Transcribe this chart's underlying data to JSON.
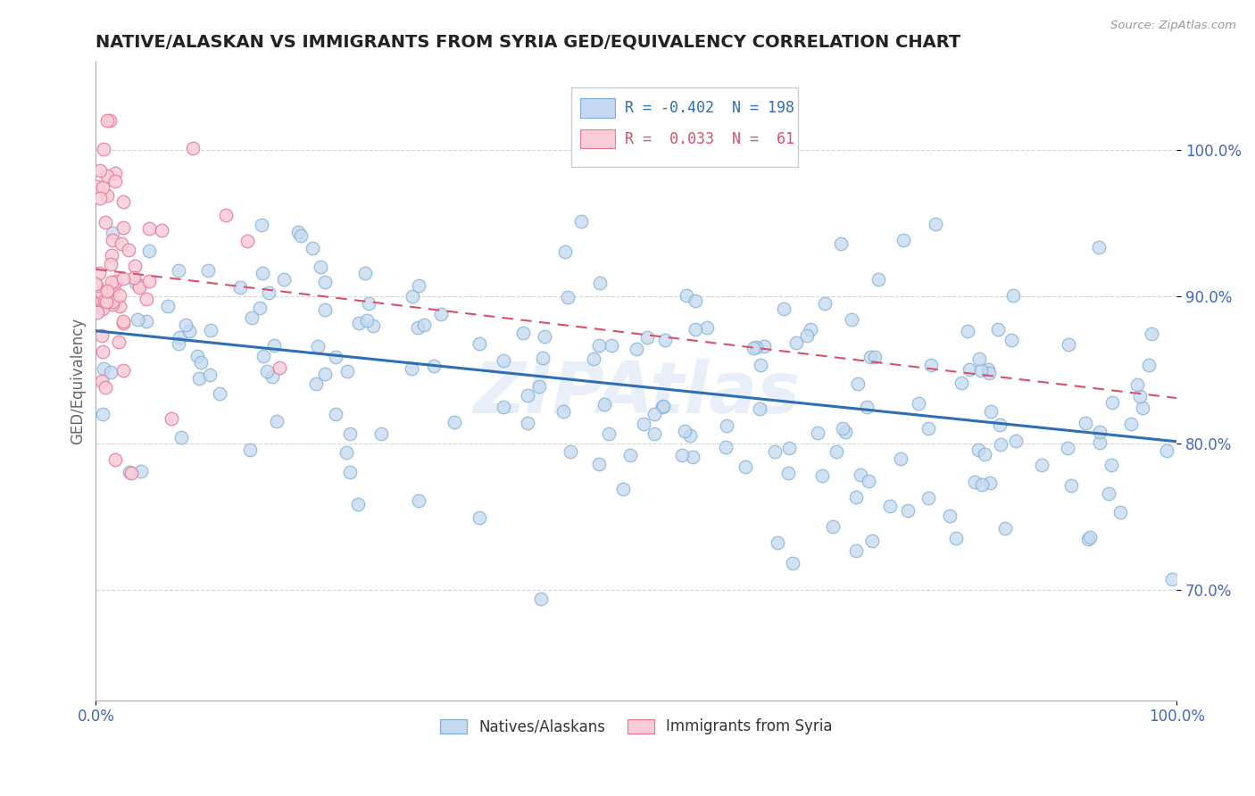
{
  "title": "NATIVE/ALASKAN VS IMMIGRANTS FROM SYRIA GED/EQUIVALENCY CORRELATION CHART",
  "source": "Source: ZipAtlas.com",
  "ylabel": "GED/Equivalency",
  "yticks": [
    0.7,
    0.8,
    0.9,
    1.0
  ],
  "ytick_labels": [
    "70.0%",
    "80.0%",
    "90.0%",
    "100.0%"
  ],
  "xlim": [
    0.0,
    1.0
  ],
  "ylim": [
    0.625,
    1.06
  ],
  "legend_r_blue": "-0.402",
  "legend_n_blue": "198",
  "legend_r_pink": "0.033",
  "legend_n_pink": "61",
  "blue_color": "#c5d9f0",
  "blue_edge": "#7bafd4",
  "pink_color": "#f9ccd8",
  "pink_edge": "#e8789a",
  "trend_blue_color": "#2e6eb5",
  "trend_pink_color": "#d9506a",
  "background_color": "#ffffff",
  "grid_color": "#cccccc",
  "title_color": "#222222",
  "axis_label_color": "#4466bb",
  "seed": 99
}
